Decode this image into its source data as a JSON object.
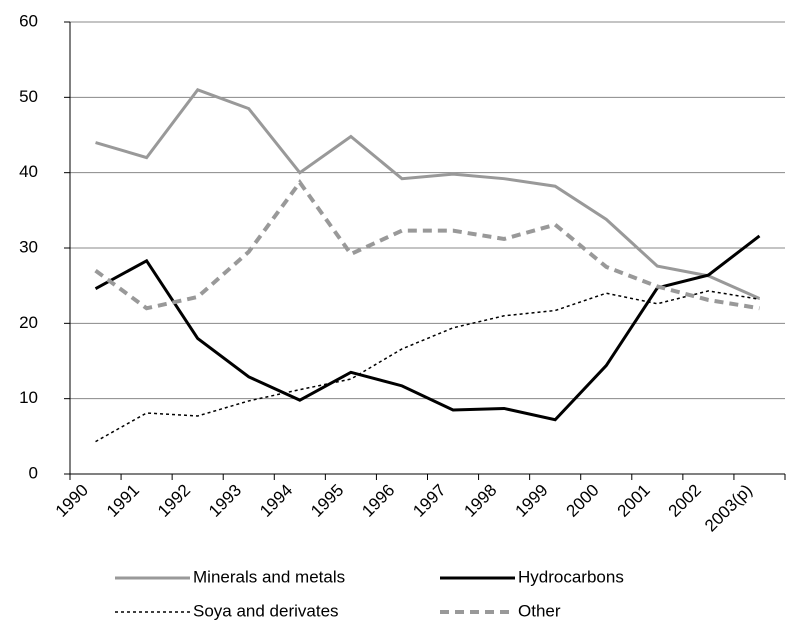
{
  "chart_data": {
    "type": "line",
    "categories": [
      "1990",
      "1991",
      "1992",
      "1993",
      "1994",
      "1995",
      "1996",
      "1997",
      "1998",
      "1999",
      "2000",
      "2001",
      "2002",
      "2003(p)"
    ],
    "series": [
      {
        "name": "Minerals and metals",
        "color": "#999999",
        "dash": "solid",
        "values": [
          44,
          42,
          51,
          48.5,
          40,
          44.8,
          39.2,
          39.8,
          39.2,
          38.2,
          33.8,
          27.6,
          26.3,
          23.3
        ]
      },
      {
        "name": "Hydrocarbons",
        "color": "#000000",
        "dash": "solid",
        "values": [
          24.6,
          28.3,
          18,
          12.9,
          9.8,
          13.5,
          11.7,
          8.5,
          8.7,
          7.2,
          14.4,
          24.7,
          26.4,
          31.6
        ]
      },
      {
        "name": "Soya and derivates",
        "color": "#000000",
        "dash": "dotted",
        "values": [
          4.3,
          8.1,
          7.7,
          9.7,
          11.2,
          12.6,
          16.6,
          19.4,
          21,
          21.7,
          24,
          22.6,
          24.3,
          23.2
        ]
      },
      {
        "name": "Other",
        "color": "#999999",
        "dash": "dashed",
        "values": [
          27,
          22,
          23.5,
          29.5,
          38.7,
          29.2,
          32.3,
          32.3,
          31.2,
          33.1,
          27.5,
          24.9,
          23.1,
          22
        ]
      }
    ],
    "ylim": [
      0,
      60
    ],
    "yticks": [
      0,
      10,
      20,
      30,
      40,
      50,
      60
    ],
    "grid": true,
    "legend": "bottom"
  }
}
